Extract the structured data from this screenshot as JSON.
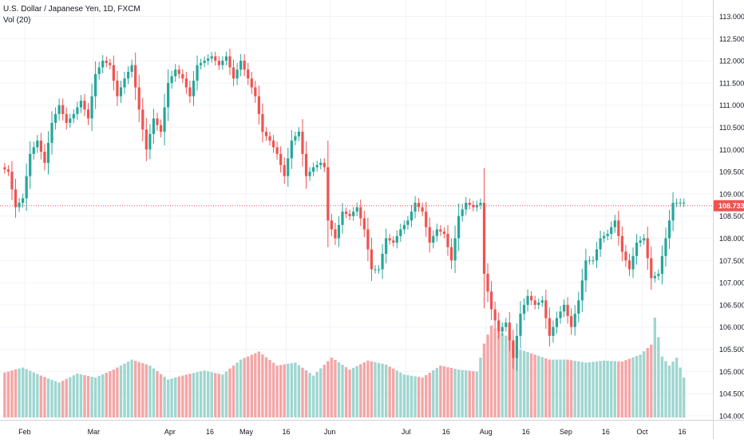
{
  "legend": {
    "symbol_line": "U.S. Dollar / Japanese Yen, 1D, FXCM",
    "volume_line": "Vol (20)"
  },
  "colors": {
    "up": "#26a69a",
    "down": "#ef5350",
    "vol_up": "#9fd6d0",
    "vol_down": "#f4a6a6",
    "grid": "#f0f3fa",
    "last_price_line": "#ef5350",
    "last_price_tag": "#ef5350",
    "axis_text": "#131722"
  },
  "chart_data": {
    "type": "candlestick",
    "title": "U.S. Dollar / Japanese Yen, 1D, FXCM",
    "series": [
      {
        "name": "",
        "kind": "ohlc"
      },
      {
        "name": "Vol (20)",
        "kind": "volume"
      }
    ],
    "ylim": [
      103.75,
      113.25
    ],
    "y_ticks": [
      "113.000",
      "112.500",
      "112.000",
      "111.500",
      "111.000",
      "110.500",
      "110.000",
      "109.500",
      "109.000",
      "108.500",
      "108.000",
      "107.500",
      "107.000",
      "106.500",
      "106.000",
      "105.500",
      "105.000",
      "104.500",
      "104.000"
    ],
    "x_ticks": [
      {
        "label": "Feb",
        "index": 6
      },
      {
        "label": "Mar",
        "index": 25
      },
      {
        "label": "Apr",
        "index": 46
      },
      {
        "label": "16",
        "index": 57
      },
      {
        "label": "May",
        "index": 67
      },
      {
        "label": "16",
        "index": 78
      },
      {
        "label": "Jun",
        "index": 90
      },
      {
        "label": "Jul",
        "index": 111
      },
      {
        "label": "16",
        "index": 122
      },
      {
        "label": "Aug",
        "index": 133
      },
      {
        "label": "16",
        "index": 144
      },
      {
        "label": "Sep",
        "index": 155
      },
      {
        "label": "16",
        "index": 166
      },
      {
        "label": "Oct",
        "index": 176
      },
      {
        "label": "16",
        "index": 187
      }
    ],
    "last_price": 108.733,
    "last_price_label": "108.733",
    "grid": true,
    "ohlc_anchors": [
      [
        0,
        109.6
      ],
      [
        2,
        109.5
      ],
      [
        4,
        108.7
      ],
      [
        6,
        108.9
      ],
      [
        8,
        109.9
      ],
      [
        10,
        110.2
      ],
      [
        12,
        109.7
      ],
      [
        14,
        110.6
      ],
      [
        16,
        111.0
      ],
      [
        18,
        110.6
      ],
      [
        20,
        110.8
      ],
      [
        22,
        111.1
      ],
      [
        24,
        110.7
      ],
      [
        26,
        111.7
      ],
      [
        28,
        112.0
      ],
      [
        30,
        111.9
      ],
      [
        32,
        111.2
      ],
      [
        34,
        111.6
      ],
      [
        36,
        111.9
      ],
      [
        38,
        110.9
      ],
      [
        40,
        110.0
      ],
      [
        42,
        110.7
      ],
      [
        44,
        110.4
      ],
      [
        46,
        111.5
      ],
      [
        48,
        111.8
      ],
      [
        50,
        111.6
      ],
      [
        52,
        111.2
      ],
      [
        54,
        111.9
      ],
      [
        56,
        112.0
      ],
      [
        58,
        112.1
      ],
      [
        60,
        111.9
      ],
      [
        62,
        112.1
      ],
      [
        64,
        111.6
      ],
      [
        66,
        112.0
      ],
      [
        68,
        111.6
      ],
      [
        70,
        111.2
      ],
      [
        72,
        110.4
      ],
      [
        74,
        110.2
      ],
      [
        76,
        109.9
      ],
      [
        78,
        109.4
      ],
      [
        80,
        110.2
      ],
      [
        82,
        110.4
      ],
      [
        84,
        109.4
      ],
      [
        86,
        109.6
      ],
      [
        88,
        109.7
      ],
      [
        89,
        109.6
      ],
      [
        90,
        108.4
      ],
      [
        92,
        108.0
      ],
      [
        94,
        108.6
      ],
      [
        96,
        108.5
      ],
      [
        98,
        108.7
      ],
      [
        100,
        108.2
      ],
      [
        102,
        107.3
      ],
      [
        104,
        107.3
      ],
      [
        106,
        108.0
      ],
      [
        108,
        107.9
      ],
      [
        110,
        108.2
      ],
      [
        112,
        108.4
      ],
      [
        114,
        108.8
      ],
      [
        116,
        108.6
      ],
      [
        118,
        107.9
      ],
      [
        120,
        108.2
      ],
      [
        122,
        108.1
      ],
      [
        124,
        107.5
      ],
      [
        126,
        108.5
      ],
      [
        128,
        108.8
      ],
      [
        130,
        108.7
      ],
      [
        132,
        108.8
      ],
      [
        133,
        107.2
      ],
      [
        135,
        106.4
      ],
      [
        137,
        105.9
      ],
      [
        139,
        106.1
      ],
      [
        141,
        105.3
      ],
      [
        143,
        106.3
      ],
      [
        145,
        106.7
      ],
      [
        147,
        106.5
      ],
      [
        149,
        106.6
      ],
      [
        151,
        105.8
      ],
      [
        153,
        106.2
      ],
      [
        155,
        106.5
      ],
      [
        157,
        106.0
      ],
      [
        159,
        106.6
      ],
      [
        161,
        107.5
      ],
      [
        163,
        107.5
      ],
      [
        165,
        108.0
      ],
      [
        167,
        108.1
      ],
      [
        169,
        108.4
      ],
      [
        171,
        107.7
      ],
      [
        173,
        107.3
      ],
      [
        175,
        107.9
      ],
      [
        177,
        108.0
      ],
      [
        179,
        107.1
      ],
      [
        181,
        107.2
      ],
      [
        183,
        108.0
      ],
      [
        185,
        108.8
      ],
      [
        187,
        108.8
      ],
      [
        188,
        108.8
      ]
    ],
    "volume_anchors": [
      [
        0,
        0.45
      ],
      [
        5,
        0.5
      ],
      [
        10,
        0.42
      ],
      [
        15,
        0.35
      ],
      [
        20,
        0.44
      ],
      [
        25,
        0.4
      ],
      [
        30,
        0.48
      ],
      [
        35,
        0.58
      ],
      [
        40,
        0.52
      ],
      [
        45,
        0.38
      ],
      [
        50,
        0.43
      ],
      [
        55,
        0.47
      ],
      [
        60,
        0.43
      ],
      [
        65,
        0.58
      ],
      [
        70,
        0.66
      ],
      [
        75,
        0.52
      ],
      [
        80,
        0.55
      ],
      [
        85,
        0.42
      ],
      [
        90,
        0.6
      ],
      [
        95,
        0.48
      ],
      [
        100,
        0.57
      ],
      [
        105,
        0.53
      ],
      [
        110,
        0.43
      ],
      [
        115,
        0.4
      ],
      [
        120,
        0.52
      ],
      [
        125,
        0.48
      ],
      [
        130,
        0.46
      ],
      [
        132,
        0.74
      ],
      [
        134,
        0.92
      ],
      [
        138,
        0.82
      ],
      [
        142,
        0.68
      ],
      [
        146,
        0.63
      ],
      [
        150,
        0.58
      ],
      [
        155,
        0.58
      ],
      [
        160,
        0.55
      ],
      [
        165,
        0.57
      ],
      [
        170,
        0.56
      ],
      [
        175,
        0.63
      ],
      [
        178,
        0.73
      ],
      [
        179,
        1.0
      ],
      [
        181,
        0.61
      ],
      [
        183,
        0.52
      ],
      [
        185,
        0.6
      ],
      [
        187,
        0.4
      ],
      [
        188,
        0.12
      ]
    ]
  }
}
